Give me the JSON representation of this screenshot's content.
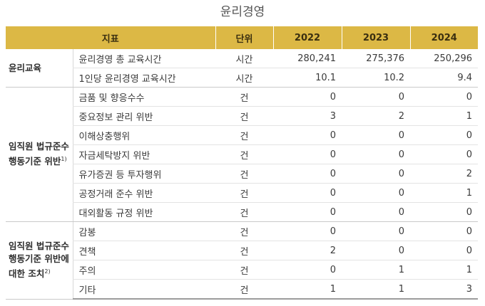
{
  "title": "윤리경영",
  "headers": {
    "indicator": "지표",
    "unit": "단위",
    "y2022": "2022",
    "y2023": "2023",
    "y2024": "2024"
  },
  "groups": [
    {
      "name": "윤리교육",
      "note": "",
      "rows": [
        {
          "indicator": "윤리경영 총 교육시간",
          "unit": "시간",
          "v2022": "280,241",
          "v2023": "275,376",
          "v2024": "250,296"
        },
        {
          "indicator": "1인당 윤리경영 교육시간",
          "unit": "시간",
          "v2022": "10.1",
          "v2023": "10.2",
          "v2024": "9.4"
        }
      ]
    },
    {
      "name": "임직원 법규준수 행동기준 위반",
      "note": "1)",
      "rows": [
        {
          "indicator": "금품 및 향응수수",
          "unit": "건",
          "v2022": "0",
          "v2023": "0",
          "v2024": "0"
        },
        {
          "indicator": "중요정보 관리 위반",
          "unit": "건",
          "v2022": "3",
          "v2023": "2",
          "v2024": "1"
        },
        {
          "indicator": "이해상충행위",
          "unit": "건",
          "v2022": "0",
          "v2023": "0",
          "v2024": "0"
        },
        {
          "indicator": "자금세탁방지 위반",
          "unit": "건",
          "v2022": "0",
          "v2023": "0",
          "v2024": "0"
        },
        {
          "indicator": "유가증권 등 투자행위",
          "unit": "건",
          "v2022": "0",
          "v2023": "0",
          "v2024": "2"
        },
        {
          "indicator": "공정거래 준수 위반",
          "unit": "건",
          "v2022": "0",
          "v2023": "0",
          "v2024": "1"
        },
        {
          "indicator": "대외활동 규정 위반",
          "unit": "건",
          "v2022": "0",
          "v2023": "0",
          "v2024": "0"
        }
      ]
    },
    {
      "name": "임직원 법규준수 행동기준 위반에 대한 조치",
      "note": "2)",
      "rows": [
        {
          "indicator": "감봉",
          "unit": "건",
          "v2022": "0",
          "v2023": "0",
          "v2024": "0"
        },
        {
          "indicator": "견책",
          "unit": "건",
          "v2022": "2",
          "v2023": "0",
          "v2024": "0"
        },
        {
          "indicator": "주의",
          "unit": "건",
          "v2022": "0",
          "v2023": "1",
          "v2024": "1"
        },
        {
          "indicator": "기타",
          "unit": "건",
          "v2022": "1",
          "v2023": "1",
          "v2024": "3"
        }
      ]
    }
  ],
  "colors": {
    "header_bg": "#dcb845"
  }
}
